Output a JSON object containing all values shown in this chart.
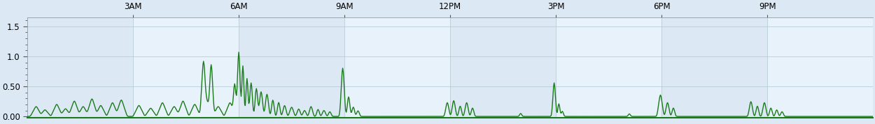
{
  "title": "",
  "xlabel": "",
  "ylabel": "",
  "xlim": [
    0,
    1440
  ],
  "ylim": [
    -0.02,
    1.65
  ],
  "yticks": [
    0.0,
    0.5,
    1.0,
    1.5
  ],
  "ytick_labels": [
    "0.00",
    "0.50",
    "1.0",
    "1.5"
  ],
  "xtick_positions": [
    180,
    360,
    540,
    720,
    900,
    1080,
    1260
  ],
  "xtick_labels": [
    "3AM",
    "6AM",
    "9AM",
    "12PM",
    "3PM",
    "6PM",
    "9PM"
  ],
  "line_color": "#1a7a1a",
  "bg_color_even": "#dce9f5",
  "bg_color_odd": "#e8f2fa",
  "grid_color": "#b8ccd8",
  "spine_color": "#999999",
  "tick_color": "#555555",
  "tick_fontsize": 8.5
}
